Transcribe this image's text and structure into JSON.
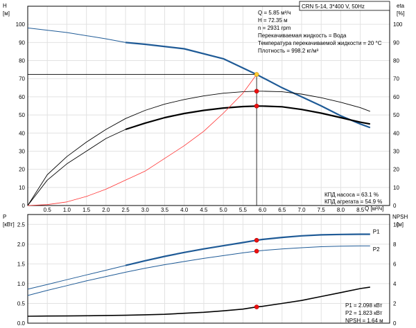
{
  "chart_data": [
    {
      "id": "top",
      "type": "line",
      "title_box": "CRN 5-14, 3*400 V, 50Hz",
      "y_left_label_line1": "H",
      "y_left_label_line2": "[м]",
      "y_right_label_line1": "eta",
      "y_right_label_line2": "[%]",
      "x_label": "Q [м³/ч]",
      "xlim": [
        0,
        9.25
      ],
      "ylim": [
        0,
        110
      ],
      "x_ticks": [
        0.5,
        1.0,
        1.5,
        2.0,
        2.5,
        3.0,
        3.5,
        4.0,
        4.5,
        5.0,
        5.5,
        6.0,
        6.5,
        7.0,
        7.5,
        8.0,
        8.5
      ],
      "x_tick_labels": [
        "0.5",
        "1.0",
        "1.5",
        "2.0",
        "2.5",
        "3.0",
        "3.5",
        "4.0",
        "4.5",
        "5.0",
        "5.5",
        "6.0",
        "6.5",
        "7.0",
        "7.5",
        "8.0",
        "8.5"
      ],
      "y_ticks": [
        0,
        10,
        20,
        30,
        40,
        50,
        60,
        70,
        80,
        90,
        100
      ],
      "y_tick_labels": [
        "0",
        "10",
        "20",
        "30",
        "40",
        "50",
        "60",
        "70",
        "80",
        "90",
        "100"
      ],
      "info_lines": [
        "Q = 5.85 м³/ч",
        "H = 72.35 м",
        "n = 2931 rpm",
        "Перекачиваемая жидкость = Вода",
        "Температура перекачиваемой жидкости = 20 °C",
        "Плотность = 998.2 кг/м³"
      ],
      "efficiency_lines": [
        "КПД насоса = 63.1 %",
        "КПД агрегата = 54.9 %"
      ],
      "duty_point": {
        "x": 5.85,
        "y": 72.35
      },
      "series": [
        {
          "role": "head_thin",
          "color": "#1e5a96",
          "x": [
            0,
            1,
            2,
            2.5
          ],
          "y": [
            98,
            95.5,
            92,
            90
          ]
        },
        {
          "role": "head_bold",
          "color": "#1e5a96",
          "x": [
            2.5,
            3,
            4,
            5,
            5.85,
            6.5,
            7,
            7.5,
            8,
            8.5,
            8.75
          ],
          "y": [
            90,
            89,
            86.5,
            81,
            72.35,
            65,
            60,
            55,
            49.5,
            45,
            43
          ]
        },
        {
          "role": "pump_eff",
          "color": "#000000",
          "x": [
            0,
            0.5,
            1,
            1.5,
            2,
            2.5,
            3,
            3.5,
            4,
            4.5,
            5,
            5.5,
            5.85,
            6,
            6.5,
            7,
            7.5,
            8,
            8.5,
            8.75
          ],
          "y": [
            0,
            17,
            27,
            35,
            42,
            48,
            52.5,
            56,
            58.5,
            60.5,
            62,
            62.8,
            63.1,
            63.1,
            62.8,
            61.5,
            59.5,
            57,
            54,
            52
          ]
        },
        {
          "role": "unit_eff_thin",
          "color": "#000000",
          "x": [
            0,
            0.5,
            1,
            1.5,
            2,
            2.5
          ],
          "y": [
            0,
            14,
            23,
            30,
            37,
            42
          ]
        },
        {
          "role": "unit_eff_bold",
          "color": "#000000",
          "x": [
            2.5,
            3,
            3.5,
            4,
            4.5,
            5,
            5.5,
            5.85,
            6,
            6.5,
            7,
            7.5,
            8,
            8.5,
            8.75
          ],
          "y": [
            42,
            45.5,
            48.5,
            50.8,
            52.5,
            53.8,
            54.6,
            54.9,
            54.9,
            54.5,
            53,
            51,
            48.5,
            46,
            45
          ]
        },
        {
          "role": "system_curve",
          "color": "#ff3030",
          "x": [
            0,
            0.5,
            1,
            1.5,
            2,
            2.5,
            3,
            3.5,
            4,
            4.5,
            5,
            5.5,
            5.85
          ],
          "y": [
            0,
            0.5,
            2,
            5,
            9,
            14,
            19,
            26,
            33,
            41,
            51,
            62,
            72.35
          ]
        }
      ],
      "markers": [
        {
          "x": 5.85,
          "y": 72.35,
          "color": "#ffcc33"
        },
        {
          "x": 5.85,
          "y": 63.1,
          "color": "#ee1111"
        },
        {
          "x": 5.85,
          "y": 54.9,
          "color": "#ee1111"
        }
      ]
    },
    {
      "id": "bottom",
      "type": "line",
      "y_left_label_line1": "P",
      "y_left_label_line2": "[кВт]",
      "y_right_label_line1": "NPSH",
      "y_right_label_line2": "[м]",
      "xlim": [
        0,
        9.25
      ],
      "ylim": [
        0,
        2.75
      ],
      "y_right_lim": [
        0,
        11
      ],
      "y_ticks": [
        0.0,
        0.5,
        1.0,
        1.5,
        2.0,
        2.5
      ],
      "y_tick_labels": [
        "0.0",
        "0.5",
        "1.0",
        "1.5",
        "2.0",
        "2.5"
      ],
      "y_right_ticks": [
        0,
        2,
        4,
        6,
        8,
        10
      ],
      "y_right_tick_labels": [
        "0",
        "2",
        "4",
        "6",
        "8",
        "10"
      ],
      "info_lines": [
        "P1 = 2.098 кВт",
        "P2 = 1.823 кВт",
        "NPSH = 1.64 м"
      ],
      "series": [
        {
          "name": "P1",
          "role": "p1_thin",
          "color": "#1e5a96",
          "x": [
            0,
            0.5,
            1,
            1.5,
            2,
            2.5
          ],
          "y": [
            0.86,
            0.98,
            1.1,
            1.22,
            1.34,
            1.46
          ]
        },
        {
          "name": "P1",
          "role": "p1_bold",
          "color": "#1e5a96",
          "x": [
            2.5,
            3,
            3.5,
            4,
            4.5,
            5,
            5.5,
            5.85,
            6,
            6.5,
            7,
            7.5,
            8,
            8.5,
            8.75
          ],
          "y": [
            1.46,
            1.58,
            1.69,
            1.79,
            1.88,
            1.96,
            2.04,
            2.098,
            2.12,
            2.17,
            2.21,
            2.235,
            2.245,
            2.25,
            2.25
          ]
        },
        {
          "name": "P2",
          "role": "p2",
          "color": "#1e5a96",
          "x": [
            0,
            0.5,
            1,
            1.5,
            2,
            2.5,
            3,
            3.5,
            4,
            4.5,
            5,
            5.5,
            5.85,
            6,
            6.5,
            7,
            7.5,
            8,
            8.5,
            8.75
          ],
          "y": [
            0.7,
            0.83,
            0.95,
            1.07,
            1.18,
            1.29,
            1.39,
            1.48,
            1.56,
            1.64,
            1.71,
            1.78,
            1.823,
            1.84,
            1.88,
            1.91,
            1.935,
            1.95,
            1.955,
            1.955
          ]
        },
        {
          "name": "NPSH",
          "role": "npsh",
          "color": "#000000",
          "x": [
            0,
            0.5,
            1,
            1.5,
            2,
            2.5,
            3,
            3.5,
            4,
            4.5,
            5,
            5.5,
            5.85,
            6,
            6.5,
            7,
            7.5,
            8,
            8.5,
            8.75
          ],
          "y_right": [
            0.7,
            0.72,
            0.73,
            0.75,
            0.78,
            0.8,
            0.85,
            0.9,
            1.0,
            1.1,
            1.25,
            1.42,
            1.64,
            1.7,
            2.0,
            2.3,
            2.7,
            3.1,
            3.5,
            3.65
          ]
        }
      ],
      "markers": [
        {
          "x": 5.85,
          "y": 2.098,
          "color": "#ee1111"
        },
        {
          "x": 5.85,
          "y": 1.823,
          "color": "#ee1111"
        },
        {
          "x": 5.85,
          "y_right": 1.64,
          "color": "#ee1111"
        }
      ],
      "series_labels": [
        {
          "text": "P1",
          "x": 8.75,
          "y": 2.32
        },
        {
          "text": "P2",
          "x": 8.75,
          "y": 1.87
        }
      ]
    }
  ]
}
